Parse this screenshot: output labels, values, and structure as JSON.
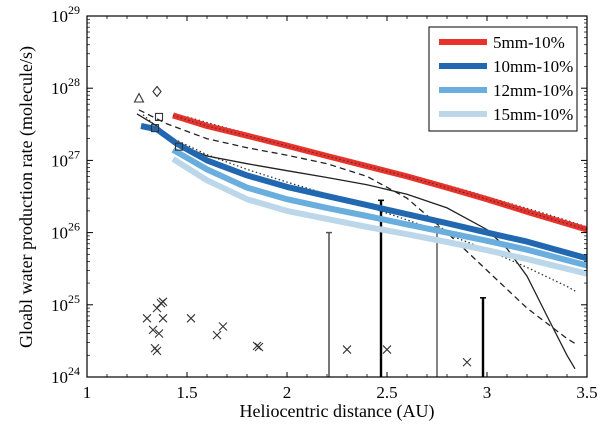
{
  "chart_data": {
    "type": "line",
    "xlabel": "Heliocentric distance (AU)",
    "ylabel": "Gloabl water production rate (molecule/s)",
    "xlim": [
      1,
      3.5
    ],
    "ylim": [
      1e+24,
      1e+29
    ],
    "yscale": "log",
    "grid": false,
    "legend_position": "top-right",
    "x_ticks": [
      1,
      1.5,
      2,
      2.5,
      3,
      3.5
    ],
    "x_tick_labels": [
      "1",
      "1.5",
      "2",
      "2.5",
      "3",
      "3.5"
    ],
    "y_ticks": [
      24,
      25,
      26,
      27,
      28,
      29
    ],
    "y_tick_labels": [
      {
        "base": "10",
        "exp": "24"
      },
      {
        "base": "10",
        "exp": "25"
      },
      {
        "base": "10",
        "exp": "26"
      },
      {
        "base": "10",
        "exp": "27"
      },
      {
        "base": "10",
        "exp": "28"
      },
      {
        "base": "10",
        "exp": "29"
      }
    ],
    "series": [
      {
        "name": "5mm-10%",
        "color": "#e8332d",
        "width": 6,
        "x": [
          1.43,
          1.6,
          1.8,
          2.0,
          2.2,
          2.4,
          2.6,
          2.8,
          3.0,
          3.2,
          3.5
        ],
        "y": [
          4.2e+27,
          3e+27,
          2.2e+27,
          1.6e+27,
          1.15e+27,
          8.3e+26,
          6e+26,
          4.2e+26,
          2.9e+26,
          1.95e+26,
          1.1e+26
        ]
      },
      {
        "name": "10mm-10%",
        "color": "#2168b0",
        "width": 6,
        "x": [
          1.27,
          1.35,
          1.45,
          1.6,
          1.8,
          2.0,
          2.2,
          2.4,
          2.6,
          2.8,
          3.0,
          3.2,
          3.5
        ],
        "y": [
          3e+27,
          2.7e+27,
          1.7e+27,
          1e+27,
          6.2e+26,
          4.3e+26,
          3.2e+26,
          2.4e+26,
          1.8e+26,
          1.35e+26,
          1e+26,
          7.5e+25,
          4.4e+25
        ]
      },
      {
        "name": "12mm-10%",
        "color": "#6aaede",
        "width": 6,
        "x": [
          1.43,
          1.6,
          1.8,
          2.0,
          2.2,
          2.4,
          2.6,
          2.8,
          3.0,
          3.2,
          3.5
        ],
        "y": [
          1.4e+27,
          7.5e+26,
          4.2e+26,
          2.9e+26,
          2.2e+26,
          1.7e+26,
          1.3e+26,
          1e+26,
          7.7e+25,
          5.8e+25,
          3.5e+25
        ]
      },
      {
        "name": "15mm-10%",
        "color": "#bcd7ea",
        "width": 6,
        "x": [
          1.43,
          1.6,
          1.8,
          2.0,
          2.2,
          2.4,
          2.6,
          2.8,
          3.0,
          3.2,
          3.5
        ],
        "y": [
          1.05e+27,
          5.3e+26,
          2.9e+26,
          2e+26,
          1.55e+26,
          1.2e+26,
          9.5e+25,
          7.4e+25,
          5.7e+25,
          4.3e+25,
          2.7e+25
        ]
      }
    ],
    "model_curves": [
      {
        "style": "dotted",
        "color": "#333333",
        "x": [
          1.28,
          1.4,
          1.6,
          1.8,
          2.0,
          2.2,
          2.4,
          2.6,
          2.8,
          3.0,
          3.2,
          3.4,
          3.45
        ],
        "y": [
          4.3e+27,
          2.2e+27,
          1.2e+27,
          7.5e+26,
          5e+26,
          3.4e+26,
          2.3e+26,
          1.5e+26,
          9.5e+25,
          5.8e+25,
          3.3e+25,
          1.8e+25,
          1.5e+25
        ]
      },
      {
        "style": "dotted",
        "color": "#333333",
        "x": [
          1.5,
          1.7,
          1.9,
          2.1,
          2.3,
          2.5,
          2.7,
          2.9,
          3.1,
          3.3,
          3.5
        ],
        "y": [
          4e+27,
          2.8e+27,
          2e+27,
          1.45e+27,
          1.05e+27,
          7.6e+26,
          5.4e+26,
          3.8e+26,
          2.6e+26,
          1.8e+26,
          1.2e+26
        ]
      },
      {
        "style": "dashed",
        "color": "#222222",
        "x": [
          1.26,
          1.4,
          1.6,
          1.8,
          2.0,
          2.2,
          2.4,
          2.6,
          2.8,
          3.0,
          3.2,
          3.4,
          3.45
        ],
        "y": [
          5e+27,
          3.2e+27,
          2e+27,
          1.5e+27,
          1.18e+27,
          9e+26,
          6e+26,
          3e+26,
          1e+26,
          3e+25,
          9e+24,
          3.4e+24,
          2.8e+24
        ]
      },
      {
        "style": "solid",
        "color": "#222222",
        "x": [
          1.25,
          1.35,
          1.45,
          1.6,
          1.8,
          2.0,
          2.2,
          2.4,
          2.6,
          2.8,
          3.0,
          3.1,
          3.2,
          3.3,
          3.4,
          3.44
        ],
        "y": [
          4.4e+27,
          3e+27,
          1.7e+27,
          1.15e+27,
          9e+26,
          7.2e+26,
          5.8e+26,
          4.6e+26,
          3.4e+26,
          2.2e+26,
          1.1e+26,
          6e+25,
          2.5e+25,
          7e+24,
          2e+24,
          1.3e+24
        ]
      }
    ],
    "observations": {
      "crosses": [
        [
          1.3,
          6.5e+24
        ],
        [
          1.33,
          4.5e+24
        ],
        [
          1.34,
          2.5e+24
        ],
        [
          1.35,
          2.3e+24
        ],
        [
          1.35,
          9e+24
        ],
        [
          1.36,
          4e+24
        ],
        [
          1.37,
          1.05e+25
        ],
        [
          1.38,
          1.1e+25
        ],
        [
          1.38,
          6.5e+24
        ],
        [
          1.52,
          6.5e+24
        ],
        [
          1.65,
          3.8e+24
        ],
        [
          1.68,
          5e+24
        ],
        [
          1.85,
          2.7e+24
        ],
        [
          1.86,
          2.6e+24
        ],
        [
          2.3,
          2.4e+24
        ],
        [
          2.5,
          2.4e+24
        ],
        [
          2.9,
          1.6e+24
        ]
      ],
      "triangles": [
        [
          1.26,
          7.2e+27
        ]
      ],
      "diamonds": [
        [
          1.35,
          9e+27
        ]
      ],
      "squares": [
        [
          1.34,
          2.8e+27
        ],
        [
          1.36,
          4e+27
        ],
        [
          1.46,
          1.55e+27
        ]
      ],
      "upper_limits": [
        {
          "x": 2.21,
          "top": 1e+26,
          "color": "#555555",
          "width": 1.6
        },
        {
          "x": 2.47,
          "top": 2.8e+26,
          "color": "#000000",
          "width": 2.4
        },
        {
          "x": 2.75,
          "top": 1.2e+26,
          "color": "#666666",
          "width": 1.6
        },
        {
          "x": 2.98,
          "top": 1.25e+25,
          "color": "#000000",
          "width": 2.4
        }
      ]
    }
  }
}
